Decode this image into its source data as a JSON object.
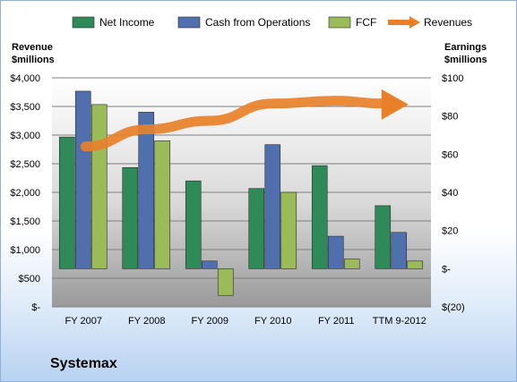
{
  "chart_data": {
    "type": "bar",
    "categories": [
      "FY 2007",
      "FY 2008",
      "FY 2009",
      "FY 2010",
      "FY 2011",
      "TTM 9-2012"
    ],
    "series": [
      {
        "name": "Net Income",
        "axis": "right",
        "color": "#2e8b57",
        "values": [
          69,
          53,
          46,
          42,
          54,
          33
        ]
      },
      {
        "name": "Cash from Operations",
        "axis": "right",
        "color": "#4f6fad",
        "values": [
          93,
          82,
          4,
          65,
          17,
          19
        ]
      },
      {
        "name": "FCF",
        "axis": "right",
        "color": "#9bbb59",
        "values": [
          86,
          67,
          -14,
          40,
          5,
          4
        ]
      },
      {
        "name": "Revenues",
        "axis": "left",
        "type": "trend-arrow",
        "color": "#e8802a",
        "values": [
          2800,
          3100,
          3250,
          3550,
          3600,
          3550
        ]
      }
    ],
    "left_axis": {
      "title_line1": "Revenue",
      "title_line2": "$millions",
      "ylim": [
        0,
        4000
      ],
      "ticks": [
        "$-",
        "$500",
        "$1,000",
        "$1,500",
        "$2,000",
        "$2,500",
        "$3,000",
        "$3,500",
        "$4,000"
      ]
    },
    "right_axis": {
      "title_line1": "Earnings",
      "title_line2": "$millions",
      "ylim": [
        -20,
        100
      ],
      "ticks": [
        "$(20)",
        "$-",
        "$20",
        "$40",
        "$60",
        "$80",
        "$100"
      ]
    },
    "grid": true,
    "legend_position": "top"
  },
  "company": "Systemax"
}
